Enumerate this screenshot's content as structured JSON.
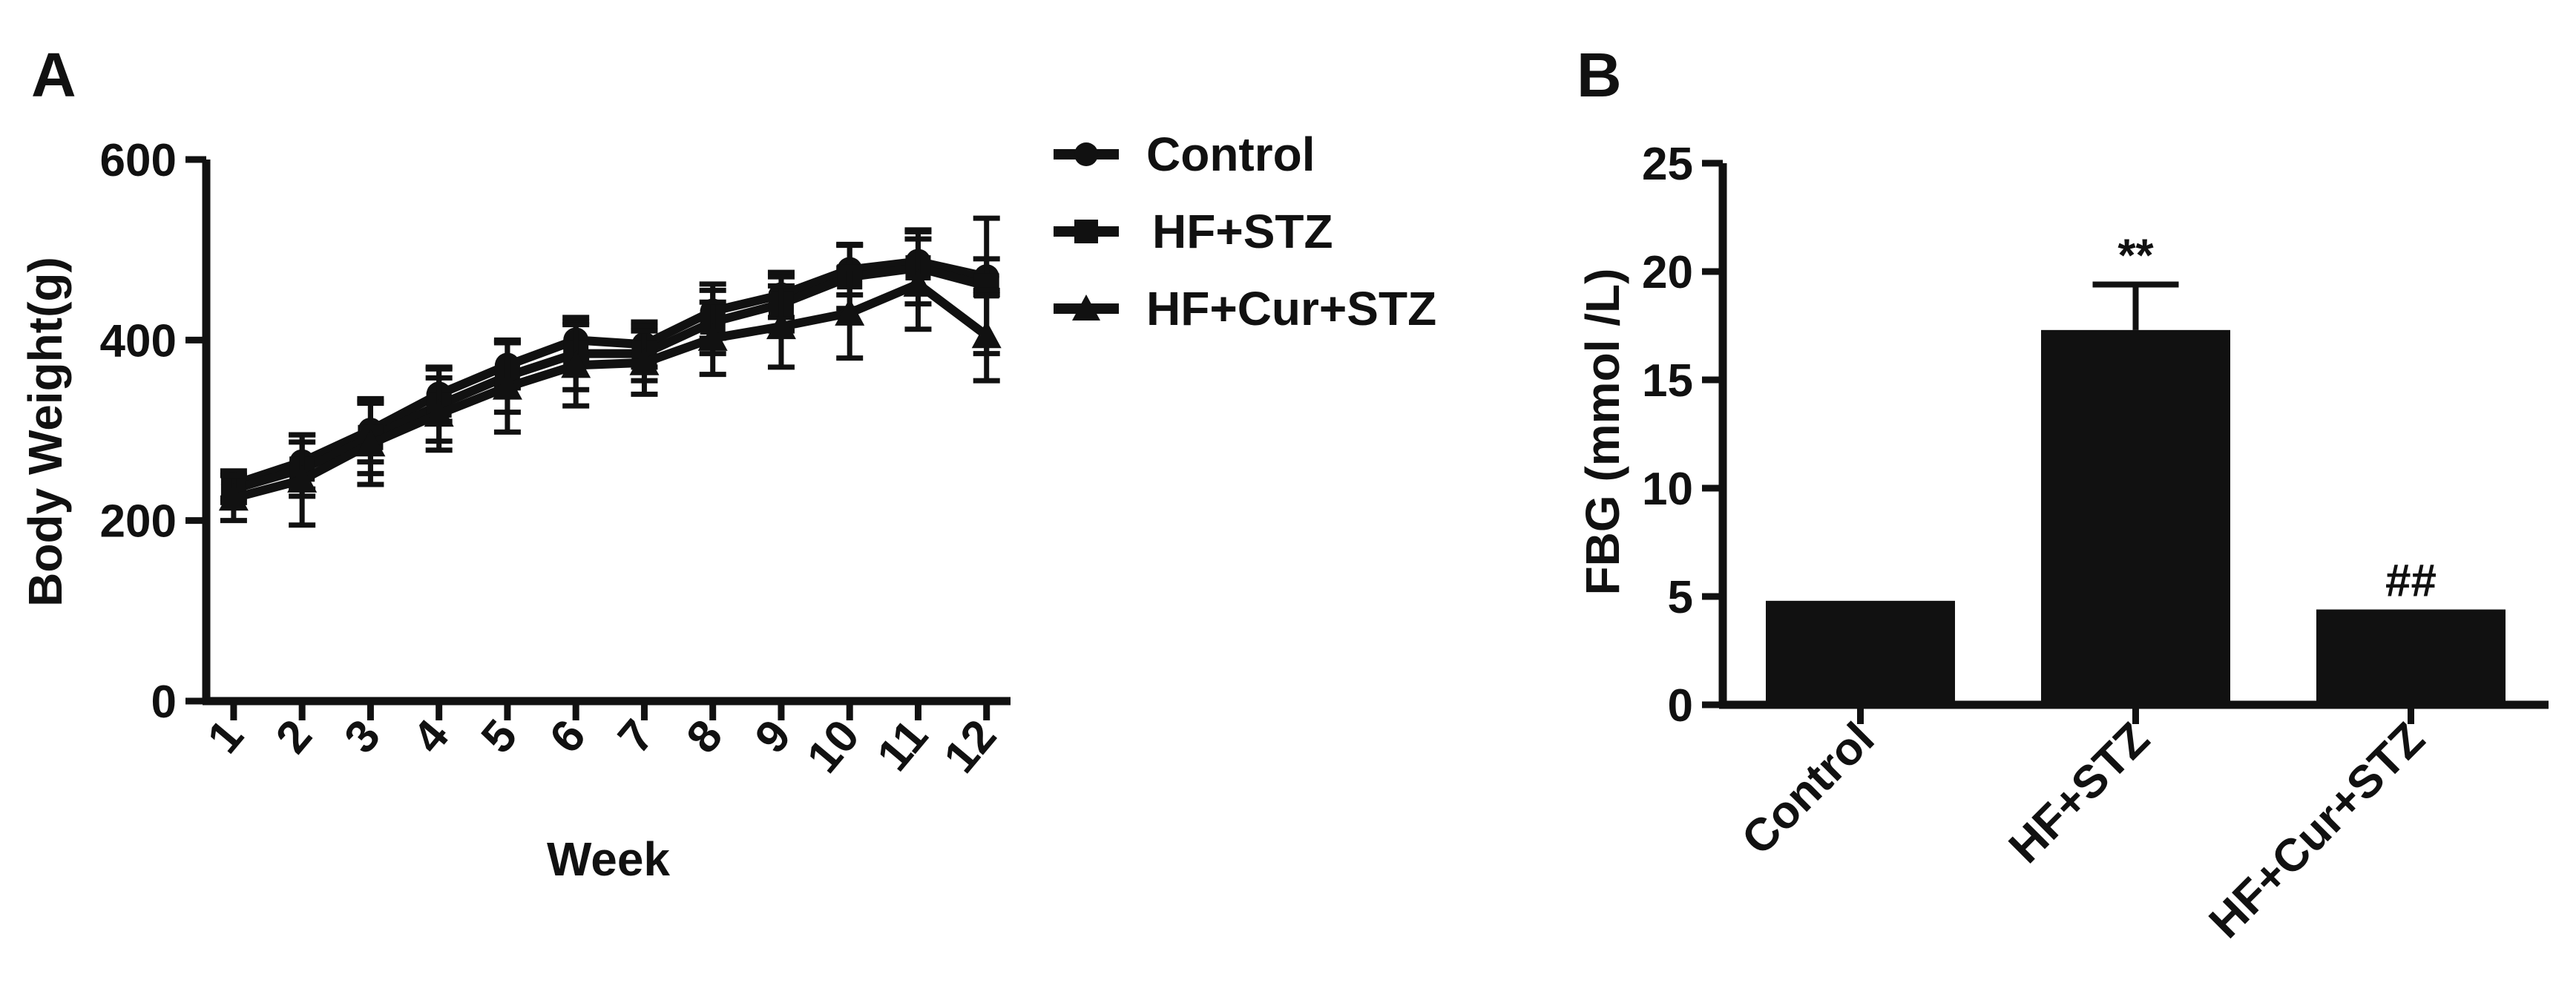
{
  "chart_data": [
    {
      "panel": "A",
      "type": "line",
      "xlabel": "Week",
      "ylabel": "Body Weight(g)",
      "x": [
        1,
        2,
        3,
        4,
        5,
        6,
        7,
        8,
        9,
        10,
        11,
        12
      ],
      "ylim": [
        0,
        600
      ],
      "yticks": [
        0,
        200,
        400,
        600
      ],
      "legend": "right",
      "series": [
        {
          "name": "Control",
          "marker": "circle",
          "values": [
            240,
            265,
            300,
            340,
            372,
            400,
            395,
            432,
            450,
            478,
            487,
            470
          ],
          "errors": [
            15,
            30,
            35,
            30,
            25,
            20,
            25,
            30,
            25,
            28,
            35,
            20
          ]
        },
        {
          "name": "HF+STZ",
          "marker": "square",
          "values": [
            235,
            257,
            292,
            328,
            360,
            385,
            385,
            420,
            440,
            470,
            480,
            460
          ],
          "errors": [
            15,
            30,
            40,
            40,
            40,
            40,
            30,
            35,
            30,
            35,
            40,
            75
          ]
        },
        {
          "name": "HF+Cur+STZ",
          "marker": "triangle",
          "values": [
            225,
            245,
            285,
            318,
            348,
            372,
            375,
            402,
            415,
            430,
            462,
            405
          ],
          "errors": [
            25,
            50,
            45,
            40,
            50,
            45,
            35,
            40,
            45,
            50,
            50,
            50
          ]
        }
      ]
    },
    {
      "panel": "B",
      "type": "bar",
      "ylabel": "FBG (mmol /L)",
      "categories": [
        "Control",
        "HF+STZ",
        "HF+Cur+STZ"
      ],
      "values": [
        4.8,
        17.3,
        4.4
      ],
      "errors": [
        0.05,
        2.1,
        0.05
      ],
      "annotations": [
        "",
        "**",
        "##"
      ],
      "ylim": [
        0,
        25
      ],
      "yticks": [
        0,
        5,
        10,
        15,
        20,
        25
      ]
    }
  ]
}
